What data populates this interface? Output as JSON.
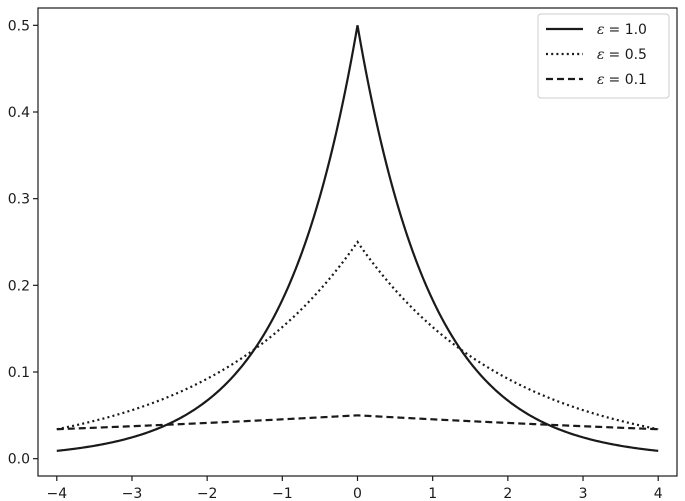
{
  "chart_data": {
    "type": "line",
    "title": "",
    "xlabel": "",
    "ylabel": "",
    "xlim": [
      -4.25,
      4.25
    ],
    "ylim": [
      -0.02,
      0.52
    ],
    "x_ticks": [
      -4,
      -3,
      -2,
      -1,
      0,
      1,
      2,
      3,
      4
    ],
    "x_tick_labels": [
      "−4",
      "−3",
      "−2",
      "−1",
      "0",
      "1",
      "2",
      "3",
      "4"
    ],
    "y_ticks": [
      0.0,
      0.1,
      0.2,
      0.3,
      0.4,
      0.5
    ],
    "y_tick_labels": [
      "0.0",
      "0.1",
      "0.2",
      "0.3",
      "0.4",
      "0.5"
    ],
    "grid": false,
    "legend_position": "top-right",
    "x": [
      -4,
      -3.5,
      -3,
      -2.5,
      -2,
      -1.5,
      -1,
      -0.5,
      0,
      0.5,
      1,
      1.5,
      2,
      2.5,
      3,
      3.5,
      4
    ],
    "series": [
      {
        "name_prefix": "ε",
        "name_suffix": "= 1.0",
        "style": "solid",
        "values": [
          0.009,
          0.015,
          0.025,
          0.041,
          0.068,
          0.112,
          0.184,
          0.303,
          0.5,
          0.303,
          0.184,
          0.112,
          0.068,
          0.041,
          0.025,
          0.015,
          0.009
        ]
      },
      {
        "name_prefix": "ε",
        "name_suffix": "= 0.5",
        "style": "dotted",
        "values": [
          0.034,
          0.043,
          0.056,
          0.072,
          0.092,
          0.118,
          0.152,
          0.195,
          0.25,
          0.195,
          0.152,
          0.118,
          0.092,
          0.072,
          0.056,
          0.043,
          0.034
        ]
      },
      {
        "name_prefix": "ε",
        "name_suffix": "= 0.1",
        "style": "dashed",
        "values": [
          0.034,
          0.035,
          0.037,
          0.039,
          0.041,
          0.043,
          0.045,
          0.048,
          0.05,
          0.048,
          0.045,
          0.043,
          0.041,
          0.039,
          0.037,
          0.035,
          0.034
        ]
      }
    ]
  },
  "colors": {
    "line": "#1a1a1a",
    "axes": "#1a1a1a",
    "background": "#ffffff"
  }
}
